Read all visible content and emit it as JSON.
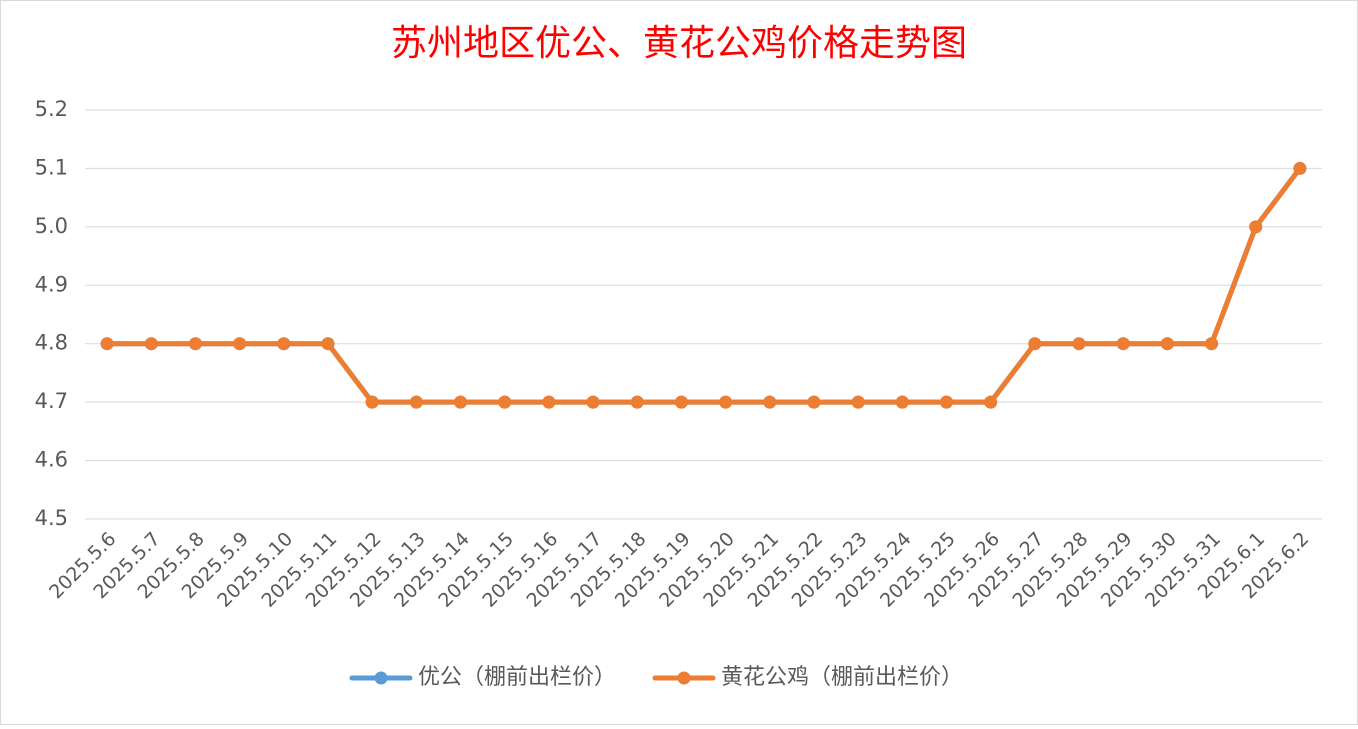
{
  "chart_data": {
    "type": "line",
    "title": "苏州地区优公、黄花公鸡价格走势图",
    "categories": [
      "2025.5.6",
      "2025.5.7",
      "2025.5.8",
      "2025.5.9",
      "2025.5.10",
      "2025.5.11",
      "2025.5.12",
      "2025.5.13",
      "2025.5.14",
      "2025.5.15",
      "2025.5.16",
      "2025.5.17",
      "2025.5.18",
      "2025.5.19",
      "2025.5.20",
      "2025.5.21",
      "2025.5.22",
      "2025.5.23",
      "2025.5.24",
      "2025.5.25",
      "2025.5.26",
      "2025.5.27",
      "2025.5.28",
      "2025.5.29",
      "2025.5.30",
      "2025.5.31",
      "2025.6.1",
      "2025.6.2"
    ],
    "series": [
      {
        "name": "优公（棚前出栏价）",
        "color": "#5b9bd5",
        "values": [
          4.8,
          4.8,
          4.8,
          4.8,
          4.8,
          4.8,
          4.7,
          4.7,
          4.7,
          4.7,
          4.7,
          4.7,
          4.7,
          4.7,
          4.7,
          4.7,
          4.7,
          4.7,
          4.7,
          4.7,
          4.7,
          4.8,
          4.8,
          4.8,
          4.8,
          4.8,
          5,
          5.1
        ]
      },
      {
        "name": "黄花公鸡（棚前出栏价）",
        "color": "#ed7d31",
        "values": [
          4.8,
          4.8,
          4.8,
          4.8,
          4.8,
          4.8,
          4.7,
          4.7,
          4.7,
          4.7,
          4.7,
          4.7,
          4.7,
          4.7,
          4.7,
          4.7,
          4.7,
          4.7,
          4.7,
          4.7,
          4.7,
          4.8,
          4.8,
          4.8,
          4.8,
          4.8,
          5,
          5.1
        ]
      }
    ],
    "ylim": [
      4.5,
      5.2
    ],
    "yticks": [
      4.5,
      4.6,
      4.7,
      4.8,
      4.9,
      {
        "value": 5,
        "label": "5.0"
      },
      5.1,
      5.2
    ],
    "grid": true,
    "legend": "bottom"
  }
}
